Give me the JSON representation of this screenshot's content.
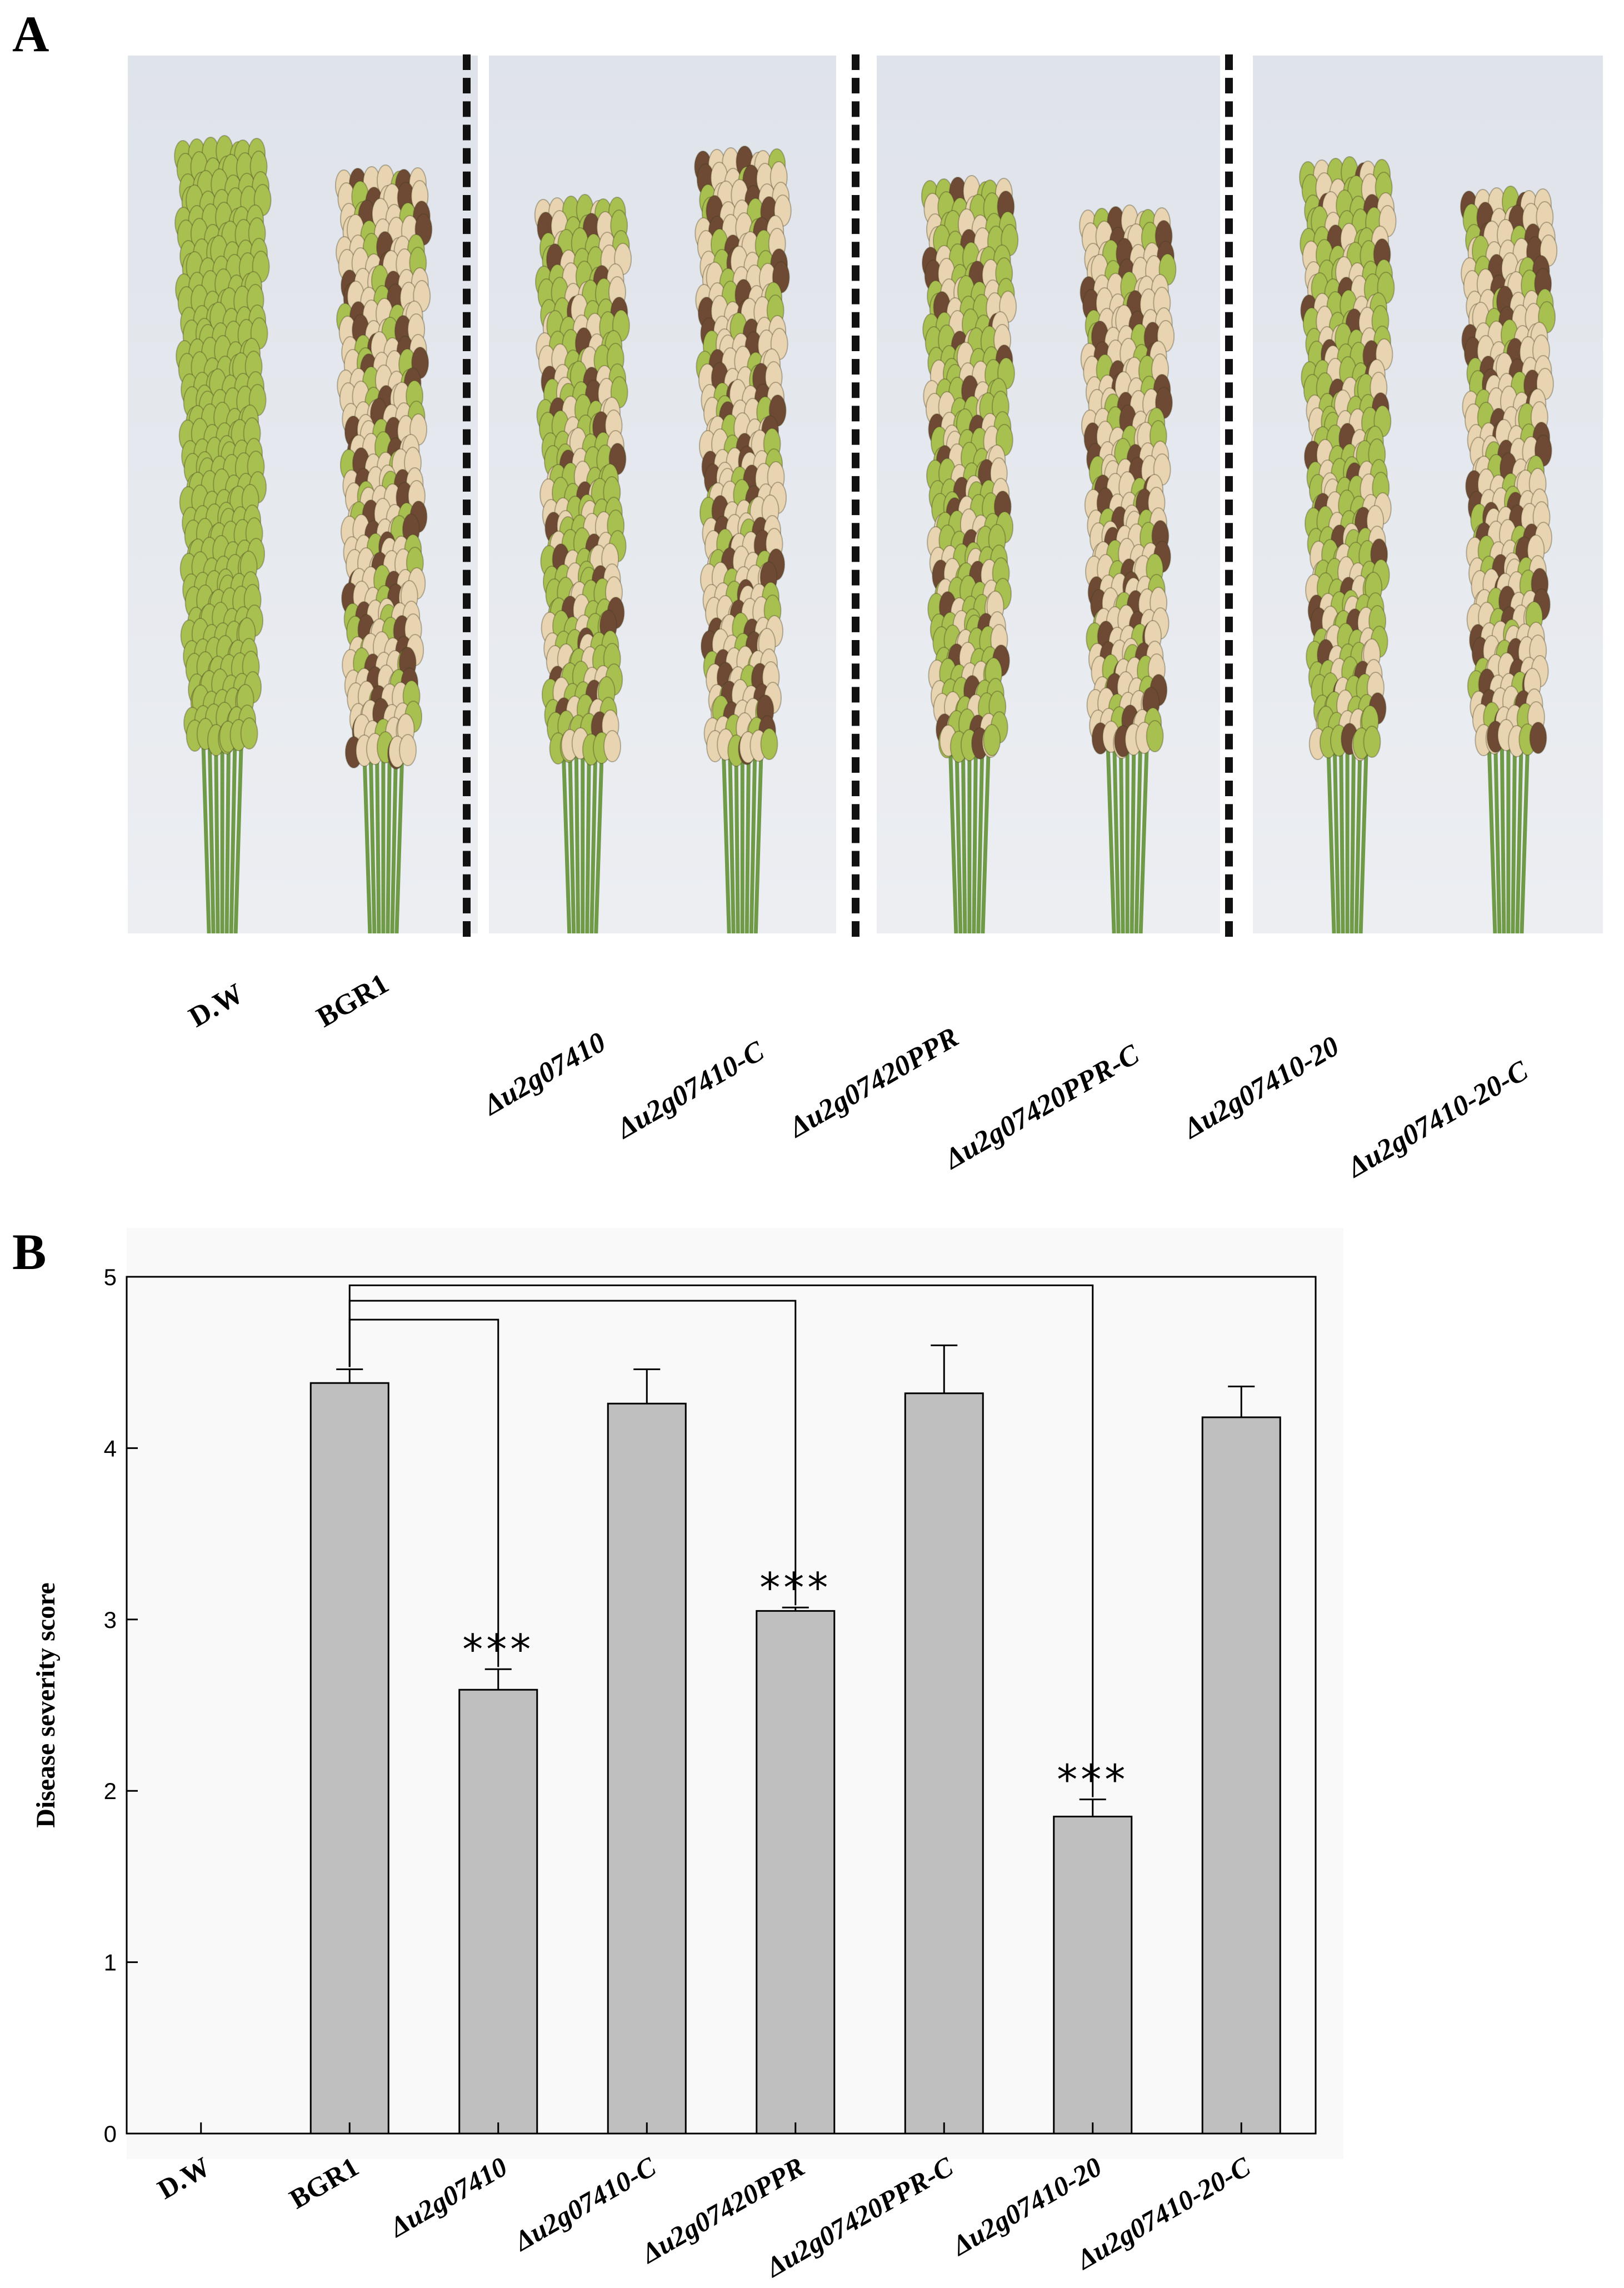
{
  "panel_a": {
    "letter": "A",
    "groups": [
      [
        "D.W",
        "BGR1"
      ],
      [
        "Δu2g07410",
        "Δu2g07410-C"
      ],
      [
        "Δu2g07420PPR",
        "Δu2g07420PPR-C"
      ],
      [
        "Δu2g07410-20",
        "Δu2g07410-20-C"
      ]
    ],
    "labels": [
      "D.W",
      "BGR1",
      "Δu2g07410",
      "Δu2g07410-C",
      "Δu2g07420PPR",
      "Δu2g07420PPR-C",
      "Δu2g07410-20",
      "Δu2g07410-20-C"
    ],
    "colors": {
      "healthy": "#a8c050",
      "diseased": "#e8d4b0",
      "lesion": "#6e4a34",
      "stem": "#6f9a47"
    }
  },
  "panel_b": {
    "letter": "B"
  },
  "chart_data": {
    "type": "bar",
    "title": "",
    "xlabel": "",
    "ylabel": "Disease severity score",
    "ylim": [
      0,
      5
    ],
    "yticks": [
      "0",
      "1",
      "2",
      "3",
      "4",
      "5"
    ],
    "categories": [
      "D.W",
      "BGR1",
      "Δu2g07410",
      "Δu2g07410-C",
      "Δu2g07420PPR",
      "Δu2g07420PPR-C",
      "Δu2g07410-20",
      "Δu2g07410-20-C"
    ],
    "values": [
      0,
      4.38,
      2.59,
      4.26,
      3.05,
      4.32,
      1.85,
      4.18
    ],
    "errors": [
      0,
      0.08,
      0.12,
      0.2,
      0.02,
      0.28,
      0.1,
      0.18
    ],
    "significance": [
      {
        "from": "BGR1",
        "to": "Δu2g07410",
        "label": "***"
      },
      {
        "from": "BGR1",
        "to": "Δu2g07420PPR",
        "label": "***"
      },
      {
        "from": "BGR1",
        "to": "Δu2g07410-20",
        "label": "***"
      }
    ],
    "bar_color": "#bfbfbf",
    "grid": false
  }
}
